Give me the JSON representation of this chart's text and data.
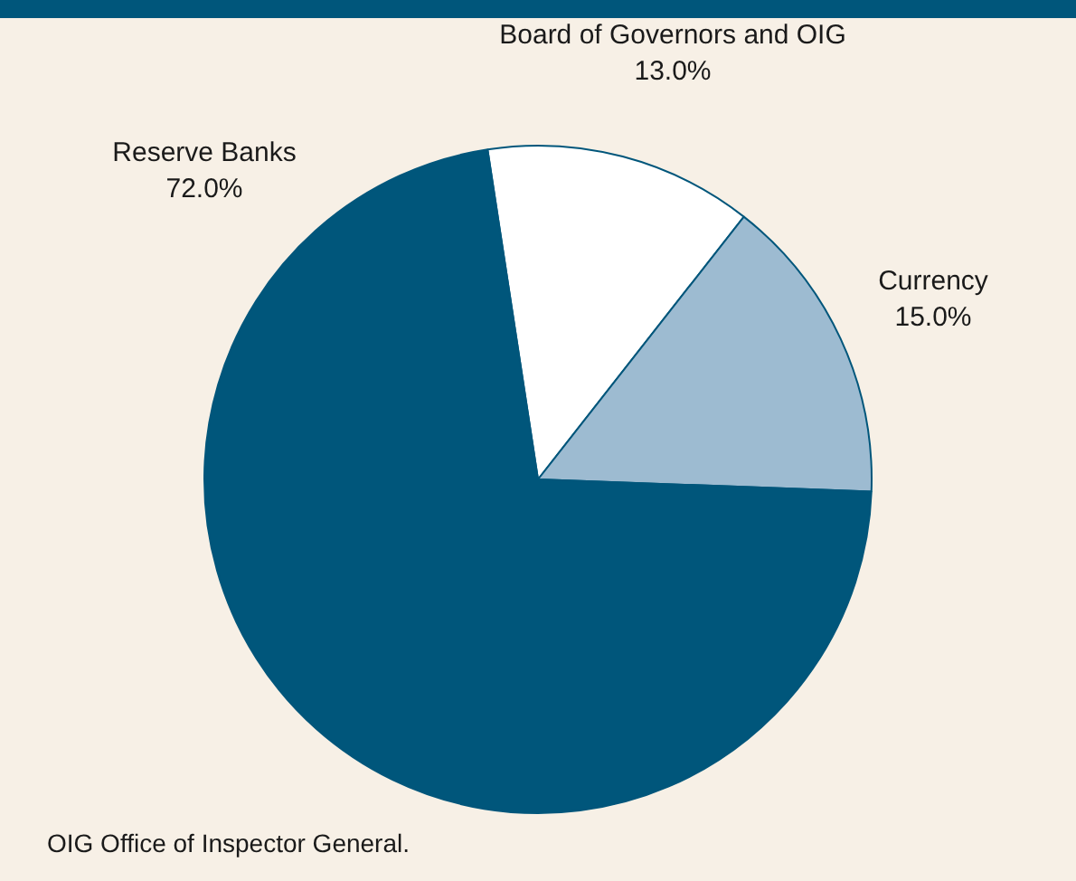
{
  "chart_data": {
    "type": "pie",
    "categories": [
      "Board of Governors and OIG",
      "Currency",
      "Reserve Banks"
    ],
    "values": [
      13.0,
      15.0,
      72.0
    ],
    "colors": [
      "#ffffff",
      "#9dbbd1",
      "#00567b"
    ],
    "value_labels": [
      "13.0%",
      "15.0%",
      "72.0%"
    ],
    "legend": false,
    "annotations": [
      "OIG Office of Inspector General."
    ]
  }
}
